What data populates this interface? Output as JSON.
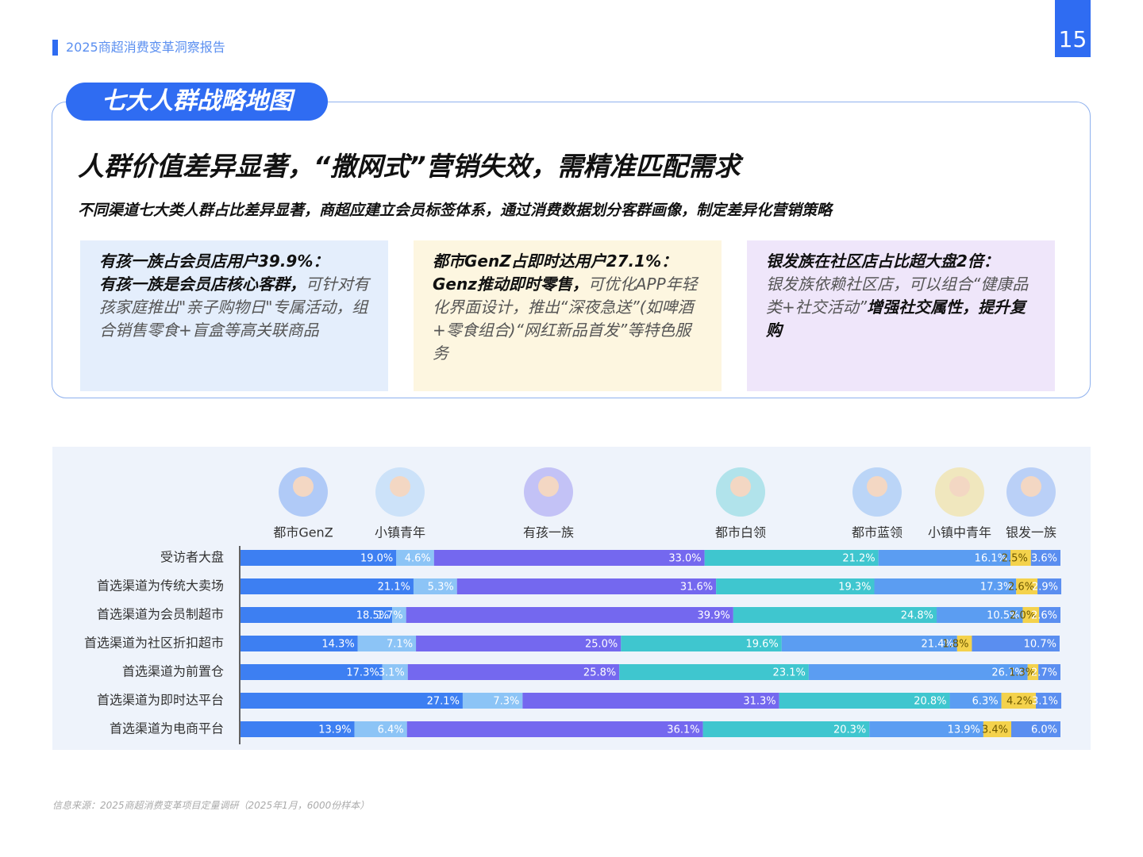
{
  "header": {
    "report": "2025商超消费变革洞察报告",
    "page_number": "15"
  },
  "section_title": "七大人群战略地图",
  "headline": "人群价值差异显著，“撒网式”营销失效，需精准匹配需求",
  "subheadline": "不同渠道七大类人群占比差异显著，商超应建立会员标签体系，通过消费数据划分客群画像，制定差异化营销策略",
  "cards": [
    {
      "color": "#e4eefc",
      "title": "有孩一族占会员店用户39.9%：",
      "body": [
        {
          "text": "有孩一族是会员店核心客群，",
          "bold": true
        },
        {
          "text": "可针对有孩家庭推出\"亲子购物日\"专属活动，组合销售零食+盲盒等高关联商品",
          "bold": false
        }
      ]
    },
    {
      "color": "#fdf6e0",
      "title": "都市GenZ占即时达用户27.1%：",
      "body": [
        {
          "text": "Genz推动即时零售，",
          "bold": true
        },
        {
          "text": "可优化APP年轻化界面设计，推出“深夜急送”(如啤酒+零食组合)“网红新品首发”等特色服务",
          "bold": false
        }
      ]
    },
    {
      "color": "#efe6fa",
      "title": "银发族在社区店占比超大盘2倍：",
      "body": [
        {
          "text": "银发族依赖社区店，可以组合“健康品类+社交活动”",
          "bold": false
        },
        {
          "text": "增强社交属性，提升复购",
          "bold": true
        }
      ]
    }
  ],
  "chart_data": {
    "type": "stacked-bar-horizontal",
    "categories": [
      "受访者大盘",
      "首选渠道为传统大卖场",
      "首选渠道为会员制超市",
      "首选渠道为社区折扣超市",
      "首选渠道为前置仓",
      "首选渠道为即时达平台",
      "首选渠道为电商平台"
    ],
    "xlim": [
      0,
      100
    ],
    "series": [
      {
        "name": "都市GenZ",
        "color": "#3d7ff2",
        "values": [
          19.0,
          21.1,
          18.5,
          14.3,
          17.3,
          27.1,
          13.9
        ],
        "value_labels": [
          "19.0%",
          "21.1%",
          "18.5%",
          "14.3%",
          "17.3%",
          "27.1%",
          "13.9%"
        ]
      },
      {
        "name": "小镇青年",
        "color": "#8cc4f6",
        "values": [
          4.6,
          5.3,
          1.7,
          7.1,
          3.1,
          7.3,
          6.4
        ],
        "value_labels": [
          "4.6%",
          "5.3%",
          "1.7%",
          "7.1%",
          "3.1%",
          "7.3%",
          "6.4%"
        ]
      },
      {
        "name": "有孩一族",
        "color": "#7468ef",
        "values": [
          33.0,
          31.6,
          39.9,
          25.0,
          25.8,
          31.3,
          36.1
        ],
        "value_labels": [
          "33.0%",
          "31.6%",
          "39.9%",
          "25.0%",
          "25.8%",
          "31.3%",
          "36.1%"
        ]
      },
      {
        "name": "都市白领",
        "color": "#3fc6cf",
        "values": [
          21.2,
          19.3,
          24.8,
          19.6,
          23.1,
          20.8,
          20.3
        ],
        "value_labels": [
          "21.2%",
          "19.3%",
          "24.8%",
          "19.6%",
          "23.1%",
          "20.8%",
          "20.3%"
        ]
      },
      {
        "name": "都市蓝领",
        "color": "#5b9df2",
        "values": [
          16.1,
          17.3,
          10.5,
          21.4,
          26.7,
          6.3,
          13.9
        ],
        "value_labels": [
          "16.1%",
          "17.3%",
          "10.5%",
          "21.4%",
          "26.7%",
          "6.3%",
          "13.9%"
        ]
      },
      {
        "name": "小镇中青年",
        "color": "#f4d24c",
        "values": [
          2.5,
          2.6,
          2.0,
          1.8,
          1.3,
          4.2,
          3.4
        ],
        "value_labels": [
          "2.5%",
          "2.6%",
          "2.0%",
          "1.8%",
          "1.3%",
          "4.2%",
          "3.4%"
        ]
      },
      {
        "name": "银发一族",
        "color": "#5a8ef0",
        "values": [
          3.6,
          2.9,
          2.6,
          10.7,
          2.7,
          3.1,
          6.0
        ],
        "value_labels": [
          "3.6%",
          "2.9%",
          "2.6%",
          "10.7%",
          "2.7%",
          "3.1%",
          "6.0%"
        ]
      }
    ]
  },
  "source": "信息来源：2025商超消费变革项目定量调研（2025年1月，6000份样本）"
}
